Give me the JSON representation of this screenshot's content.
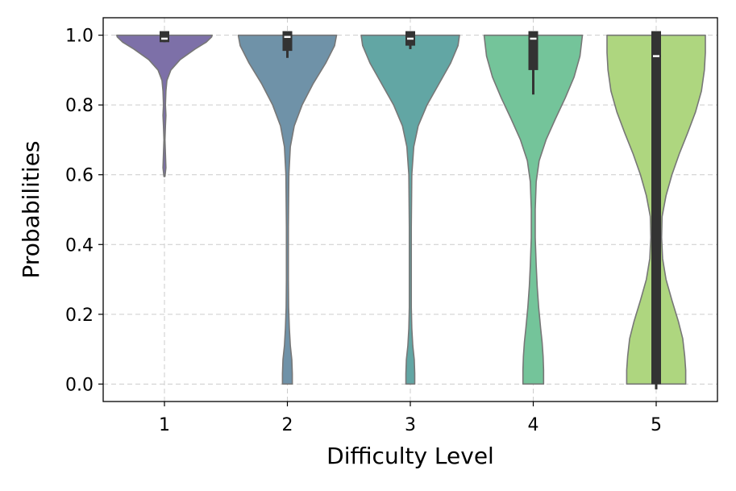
{
  "chart_data": {
    "type": "violin",
    "xlabel": "Difficulty Level",
    "ylabel": "Probabilities",
    "categories": [
      "1",
      "2",
      "3",
      "4",
      "5"
    ],
    "ylim": [
      -0.05,
      1.05
    ],
    "yticks": [
      0.0,
      0.2,
      0.4,
      0.6,
      0.8,
      1.0
    ],
    "ytick_labels": [
      "0.0",
      "0.2",
      "0.4",
      "0.6",
      "0.8",
      "1.0"
    ],
    "grid": true,
    "violin_outline_color": "#777777",
    "box_color": "#333333",
    "median_color": "#ffffff",
    "series": [
      {
        "category": "1",
        "color": "#7d70a8",
        "range": [
          0.595,
          1.0
        ],
        "box": {
          "q1": 0.98,
          "median": 0.99,
          "q3": 1.0,
          "whisker_low": 0.98,
          "whisker_high": 1.0
        },
        "density": [
          [
            0.595,
            0.01
          ],
          [
            0.62,
            0.03
          ],
          [
            0.66,
            0.02
          ],
          [
            0.7,
            0.01
          ],
          [
            0.74,
            0.02
          ],
          [
            0.77,
            0.03
          ],
          [
            0.8,
            0.02
          ],
          [
            0.84,
            0.03
          ],
          [
            0.87,
            0.05
          ],
          [
            0.9,
            0.13
          ],
          [
            0.93,
            0.32
          ],
          [
            0.96,
            0.62
          ],
          [
            0.98,
            0.85
          ],
          [
            0.995,
            0.96
          ],
          [
            1.0,
            0.97
          ]
        ]
      },
      {
        "category": "2",
        "color": "#6f92a8",
        "range": [
          0.0,
          1.0
        ],
        "box": {
          "q1": 0.955,
          "median": 0.995,
          "q3": 1.0,
          "whisker_low": 0.935,
          "whisker_high": 1.0
        },
        "density": [
          [
            0.0,
            0.1
          ],
          [
            0.03,
            0.1
          ],
          [
            0.07,
            0.09
          ],
          [
            0.11,
            0.06
          ],
          [
            0.16,
            0.04
          ],
          [
            0.22,
            0.025
          ],
          [
            0.3,
            0.02
          ],
          [
            0.45,
            0.02
          ],
          [
            0.6,
            0.03
          ],
          [
            0.68,
            0.06
          ],
          [
            0.74,
            0.14
          ],
          [
            0.8,
            0.3
          ],
          [
            0.86,
            0.52
          ],
          [
            0.92,
            0.78
          ],
          [
            0.97,
            0.96
          ],
          [
            1.0,
            1.0
          ]
        ]
      },
      {
        "category": "3",
        "color": "#62a6a4",
        "range": [
          0.0,
          1.0
        ],
        "box": {
          "q1": 0.97,
          "median": 0.99,
          "q3": 1.0,
          "whisker_low": 0.96,
          "whisker_high": 1.0
        },
        "density": [
          [
            0.0,
            0.09
          ],
          [
            0.03,
            0.09
          ],
          [
            0.07,
            0.08
          ],
          [
            0.11,
            0.05
          ],
          [
            0.16,
            0.03
          ],
          [
            0.22,
            0.02
          ],
          [
            0.3,
            0.02
          ],
          [
            0.45,
            0.02
          ],
          [
            0.6,
            0.03
          ],
          [
            0.68,
            0.07
          ],
          [
            0.74,
            0.16
          ],
          [
            0.8,
            0.34
          ],
          [
            0.86,
            0.58
          ],
          [
            0.92,
            0.82
          ],
          [
            0.97,
            0.97
          ],
          [
            1.0,
            1.0
          ]
        ]
      },
      {
        "category": "4",
        "color": "#74c49a",
        "range": [
          0.0,
          1.0
        ],
        "box": {
          "q1": 0.9,
          "median": 0.99,
          "q3": 1.0,
          "whisker_low": 0.83,
          "whisker_high": 1.0
        },
        "density": [
          [
            0.0,
            0.21
          ],
          [
            0.04,
            0.21
          ],
          [
            0.08,
            0.2
          ],
          [
            0.12,
            0.18
          ],
          [
            0.16,
            0.15
          ],
          [
            0.22,
            0.11
          ],
          [
            0.28,
            0.08
          ],
          [
            0.34,
            0.06
          ],
          [
            0.42,
            0.04
          ],
          [
            0.5,
            0.04
          ],
          [
            0.58,
            0.06
          ],
          [
            0.64,
            0.12
          ],
          [
            0.7,
            0.26
          ],
          [
            0.76,
            0.45
          ],
          [
            0.82,
            0.65
          ],
          [
            0.88,
            0.83
          ],
          [
            0.94,
            0.95
          ],
          [
            1.0,
            1.0
          ]
        ]
      },
      {
        "category": "5",
        "color": "#aed67f",
        "range": [
          0.0,
          1.0
        ],
        "box": {
          "q1": 0.0,
          "median": 0.94,
          "q3": 1.0,
          "whisker_low": -0.015,
          "whisker_high": 1.0
        },
        "density": [
          [
            0.0,
            0.6
          ],
          [
            0.04,
            0.6
          ],
          [
            0.08,
            0.58
          ],
          [
            0.13,
            0.54
          ],
          [
            0.18,
            0.45
          ],
          [
            0.24,
            0.32
          ],
          [
            0.3,
            0.2
          ],
          [
            0.36,
            0.13
          ],
          [
            0.42,
            0.11
          ],
          [
            0.48,
            0.12
          ],
          [
            0.54,
            0.2
          ],
          [
            0.6,
            0.32
          ],
          [
            0.66,
            0.47
          ],
          [
            0.72,
            0.64
          ],
          [
            0.78,
            0.8
          ],
          [
            0.84,
            0.92
          ],
          [
            0.9,
            0.98
          ],
          [
            0.95,
            1.0
          ],
          [
            1.0,
            1.0
          ]
        ]
      }
    ]
  }
}
